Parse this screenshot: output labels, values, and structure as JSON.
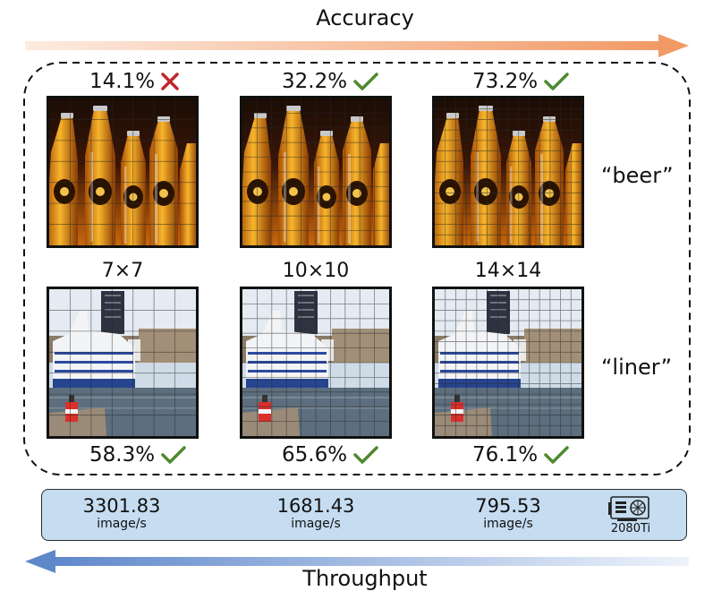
{
  "accuracy_label": "Accuracy",
  "throughput_label": "Throughput",
  "grids": [
    "7×7",
    "10×10",
    "14×14"
  ],
  "rows": [
    {
      "class_label": "“beer”",
      "image": "beer-bottles-photo",
      "results": [
        {
          "accuracy": "14.1%",
          "correct": false,
          "mark_icon": "cross-icon"
        },
        {
          "accuracy": "32.2%",
          "correct": true,
          "mark_icon": "check-icon"
        },
        {
          "accuracy": "73.2%",
          "correct": true,
          "mark_icon": "check-icon"
        }
      ]
    },
    {
      "class_label": "“liner”",
      "image": "cruise-liner-photo",
      "results": [
        {
          "accuracy": "58.3%",
          "correct": true,
          "mark_icon": "check-icon"
        },
        {
          "accuracy": "65.6%",
          "correct": true,
          "mark_icon": "check-icon"
        },
        {
          "accuracy": "76.1%",
          "correct": true,
          "mark_icon": "check-icon"
        }
      ]
    }
  ],
  "throughput": [
    {
      "value": "3301.83",
      "unit": "image/s"
    },
    {
      "value": "1681.43",
      "unit": "image/s"
    },
    {
      "value": "795.53",
      "unit": "image/s"
    }
  ],
  "gpu": {
    "label": "2080Ti",
    "icon": "gpu-card-icon"
  },
  "colors": {
    "accuracy_arrow": "#f4a77c",
    "throughput_arrow": "#6f95d1",
    "check": "#4e8a2e",
    "cross": "#c0272d",
    "throughput_box": "#c5dcf1"
  }
}
